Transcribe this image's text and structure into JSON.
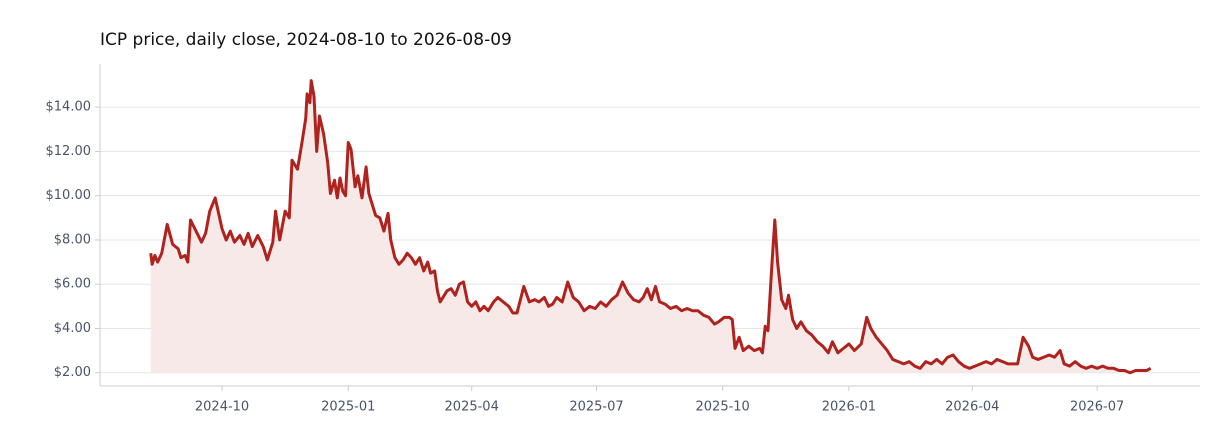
{
  "chart_data": {
    "type": "line",
    "title": "ICP price, daily close, 2024-08-10 to 2026-08-09",
    "color": "#b0221e",
    "fill_color": "#f7e9e8",
    "grid": true,
    "x": [
      "2024-08-10",
      "2024-08-11",
      "2024-08-13",
      "2024-08-15",
      "2024-08-18",
      "2024-08-22",
      "2024-08-26",
      "2024-08-30",
      "2024-09-01",
      "2024-09-04",
      "2024-09-06",
      "2024-09-08",
      "2024-09-12",
      "2024-09-16",
      "2024-09-19",
      "2024-09-22",
      "2024-09-26",
      "2024-10-01",
      "2024-10-04",
      "2024-10-07",
      "2024-10-10",
      "2024-10-14",
      "2024-10-17",
      "2024-10-20",
      "2024-10-23",
      "2024-10-27",
      "2024-10-31",
      "2024-11-03",
      "2024-11-07",
      "2024-11-09",
      "2024-11-12",
      "2024-11-16",
      "2024-11-19",
      "2024-11-21",
      "2024-11-25",
      "2024-11-28",
      "2024-12-01",
      "2024-12-02",
      "2024-12-04",
      "2024-12-05",
      "2024-12-07",
      "2024-12-09",
      "2024-12-11",
      "2024-12-14",
      "2024-12-17",
      "2024-12-19",
      "2024-12-22",
      "2024-12-24",
      "2024-12-26",
      "2024-12-28",
      "2024-12-30",
      "2025-01-01",
      "2025-01-03",
      "2025-01-06",
      "2025-01-08",
      "2025-01-11",
      "2025-01-14",
      "2025-01-16",
      "2025-01-18",
      "2025-01-21",
      "2025-01-24",
      "2025-01-27",
      "2025-01-30",
      "2025-02-01",
      "2025-02-04",
      "2025-02-07",
      "2025-02-10",
      "2025-02-13",
      "2025-02-16",
      "2025-02-19",
      "2025-02-22",
      "2025-02-25",
      "2025-02-28",
      "2025-03-02",
      "2025-03-05",
      "2025-03-07",
      "2025-03-09",
      "2025-03-14",
      "2025-03-17",
      "2025-03-20",
      "2025-03-23",
      "2025-03-26",
      "2025-03-29",
      "2025-04-01",
      "2025-04-04",
      "2025-04-07",
      "2025-04-10",
      "2025-04-13",
      "2025-04-17",
      "2025-04-20",
      "2025-04-24",
      "2025-04-28",
      "2025-05-01",
      "2025-05-04",
      "2025-05-09",
      "2025-05-13",
      "2025-05-17",
      "2025-05-20",
      "2025-05-24",
      "2025-05-27",
      "2025-05-30",
      "2025-06-02",
      "2025-06-06",
      "2025-06-10",
      "2025-06-14",
      "2025-06-18",
      "2025-06-22",
      "2025-06-26",
      "2025-06-30",
      "2025-07-04",
      "2025-07-08",
      "2025-07-12",
      "2025-07-16",
      "2025-07-20",
      "2025-07-24",
      "2025-07-28",
      "2025-08-01",
      "2025-08-04",
      "2025-08-07",
      "2025-08-10",
      "2025-08-13",
      "2025-08-16",
      "2025-08-20",
      "2025-08-24",
      "2025-08-28",
      "2025-09-01",
      "2025-09-05",
      "2025-09-09",
      "2025-09-13",
      "2025-09-17",
      "2025-09-21",
      "2025-09-25",
      "2025-09-28",
      "2025-10-02",
      "2025-10-06",
      "2025-10-08",
      "2025-10-10",
      "2025-10-13",
      "2025-10-16",
      "2025-10-20",
      "2025-10-24",
      "2025-10-28",
      "2025-10-30",
      "2025-11-01",
      "2025-11-03",
      "2025-11-06",
      "2025-11-08",
      "2025-11-10",
      "2025-11-13",
      "2025-11-16",
      "2025-11-18",
      "2025-11-21",
      "2025-11-24",
      "2025-11-27",
      "2025-12-01",
      "2025-12-05",
      "2025-12-09",
      "2025-12-13",
      "2025-12-17",
      "2025-12-20",
      "2025-12-24",
      "2025-12-28",
      "2026-01-01",
      "2026-01-05",
      "2026-01-10",
      "2026-01-14",
      "2026-01-17",
      "2026-01-21",
      "2026-01-25",
      "2026-01-29",
      "2026-02-02",
      "2026-02-06",
      "2026-02-10",
      "2026-02-14",
      "2026-02-18",
      "2026-02-22",
      "2026-02-26",
      "2026-03-02",
      "2026-03-06",
      "2026-03-10",
      "2026-03-14",
      "2026-03-18",
      "2026-03-22",
      "2026-03-26",
      "2026-03-30",
      "2026-04-03",
      "2026-04-07",
      "2026-04-11",
      "2026-04-15",
      "2026-04-19",
      "2026-04-23",
      "2026-04-27",
      "2026-05-01",
      "2026-05-04",
      "2026-05-08",
      "2026-05-12",
      "2026-05-15",
      "2026-05-19",
      "2026-05-23",
      "2026-05-27",
      "2026-05-31",
      "2026-06-04",
      "2026-06-07",
      "2026-06-11",
      "2026-06-15",
      "2026-06-19",
      "2026-06-23",
      "2026-06-27",
      "2026-07-01",
      "2026-07-05",
      "2026-07-09",
      "2026-07-13",
      "2026-07-17",
      "2026-07-21",
      "2026-07-25",
      "2026-07-29",
      "2026-08-02",
      "2026-08-06",
      "2026-08-09"
    ],
    "values": [
      7.4,
      6.9,
      7.3,
      7.0,
      7.4,
      8.7,
      7.8,
      7.6,
      7.2,
      7.3,
      7.0,
      8.9,
      8.4,
      7.9,
      8.3,
      9.3,
      9.9,
      8.5,
      8.0,
      8.4,
      7.9,
      8.2,
      7.8,
      8.3,
      7.7,
      8.2,
      7.7,
      7.1,
      7.9,
      9.3,
      8.0,
      9.3,
      9.0,
      11.6,
      11.2,
      12.3,
      13.5,
      14.6,
      14.2,
      15.2,
      14.5,
      12.0,
      13.6,
      12.8,
      11.5,
      10.1,
      10.7,
      9.9,
      10.8,
      10.2,
      10.0,
      12.4,
      12.1,
      10.4,
      10.9,
      9.9,
      11.3,
      10.1,
      9.7,
      9.1,
      9.0,
      8.4,
      9.2,
      8.0,
      7.2,
      6.9,
      7.1,
      7.4,
      7.2,
      6.9,
      7.2,
      6.6,
      7.0,
      6.5,
      6.6,
      5.7,
      5.2,
      5.7,
      5.8,
      5.5,
      6.0,
      6.1,
      5.2,
      5.0,
      5.2,
      4.8,
      5.0,
      4.8,
      5.2,
      5.4,
      5.2,
      5.0,
      4.7,
      4.7,
      5.9,
      5.2,
      5.3,
      5.2,
      5.4,
      5.0,
      5.1,
      5.4,
      5.2,
      6.1,
      5.4,
      5.2,
      4.8,
      5.0,
      4.9,
      5.2,
      5.0,
      5.3,
      5.5,
      6.1,
      5.6,
      5.3,
      5.2,
      5.4,
      5.8,
      5.3,
      5.9,
      5.2,
      5.1,
      4.9,
      5.0,
      4.8,
      4.9,
      4.8,
      4.8,
      4.6,
      4.5,
      4.2,
      4.3,
      4.5,
      4.5,
      4.4,
      3.1,
      3.6,
      3.0,
      3.2,
      3.0,
      3.1,
      2.9,
      4.1,
      3.9,
      7.0,
      8.9,
      7.0,
      5.3,
      4.9,
      5.5,
      4.4,
      4.0,
      4.3,
      3.9,
      3.7,
      3.4,
      3.2,
      2.9,
      3.4,
      2.9,
      3.1,
      3.3,
      3.0,
      3.3,
      4.5,
      4.0,
      3.6,
      3.3,
      3.0,
      2.6,
      2.5,
      2.4,
      2.5,
      2.3,
      2.2,
      2.5,
      2.4,
      2.6,
      2.4,
      2.7,
      2.8,
      2.5,
      2.3,
      2.2,
      2.3,
      2.4,
      2.5,
      2.4,
      2.6,
      2.5,
      2.4,
      2.4,
      2.4,
      3.6,
      3.2,
      2.7,
      2.6,
      2.7,
      2.8,
      2.7,
      3.0,
      2.4,
      2.3,
      2.5,
      2.3,
      2.2,
      2.3,
      2.2,
      2.3,
      2.2,
      2.2,
      2.1,
      2.1,
      2.0,
      2.1,
      2.1,
      2.1,
      2.2
    ],
    "xlim": [
      "2024-07-04",
      "2026-09-14"
    ],
    "xticks": [
      {
        "value": "2024-10-01",
        "label": "2024-10"
      },
      {
        "value": "2025-01-01",
        "label": "2025-01"
      },
      {
        "value": "2025-04-01",
        "label": "2025-04"
      },
      {
        "value": "2025-07-01",
        "label": "2025-07"
      },
      {
        "value": "2025-10-01",
        "label": "2025-10"
      },
      {
        "value": "2026-01-01",
        "label": "2026-01"
      },
      {
        "value": "2026-04-01",
        "label": "2026-04"
      },
      {
        "value": "2026-07-01",
        "label": "2026-07"
      }
    ],
    "ylim": [
      1.4,
      15.95
    ],
    "yticks": [
      {
        "value": 2,
        "label": "$2.00"
      },
      {
        "value": 4,
        "label": "$4.00"
      },
      {
        "value": 6,
        "label": "$6.00"
      },
      {
        "value": 8,
        "label": "$8.00"
      },
      {
        "value": 10,
        "label": "$10.00"
      },
      {
        "value": 12,
        "label": "$12.00"
      },
      {
        "value": 14,
        "label": "$14.00"
      }
    ]
  }
}
